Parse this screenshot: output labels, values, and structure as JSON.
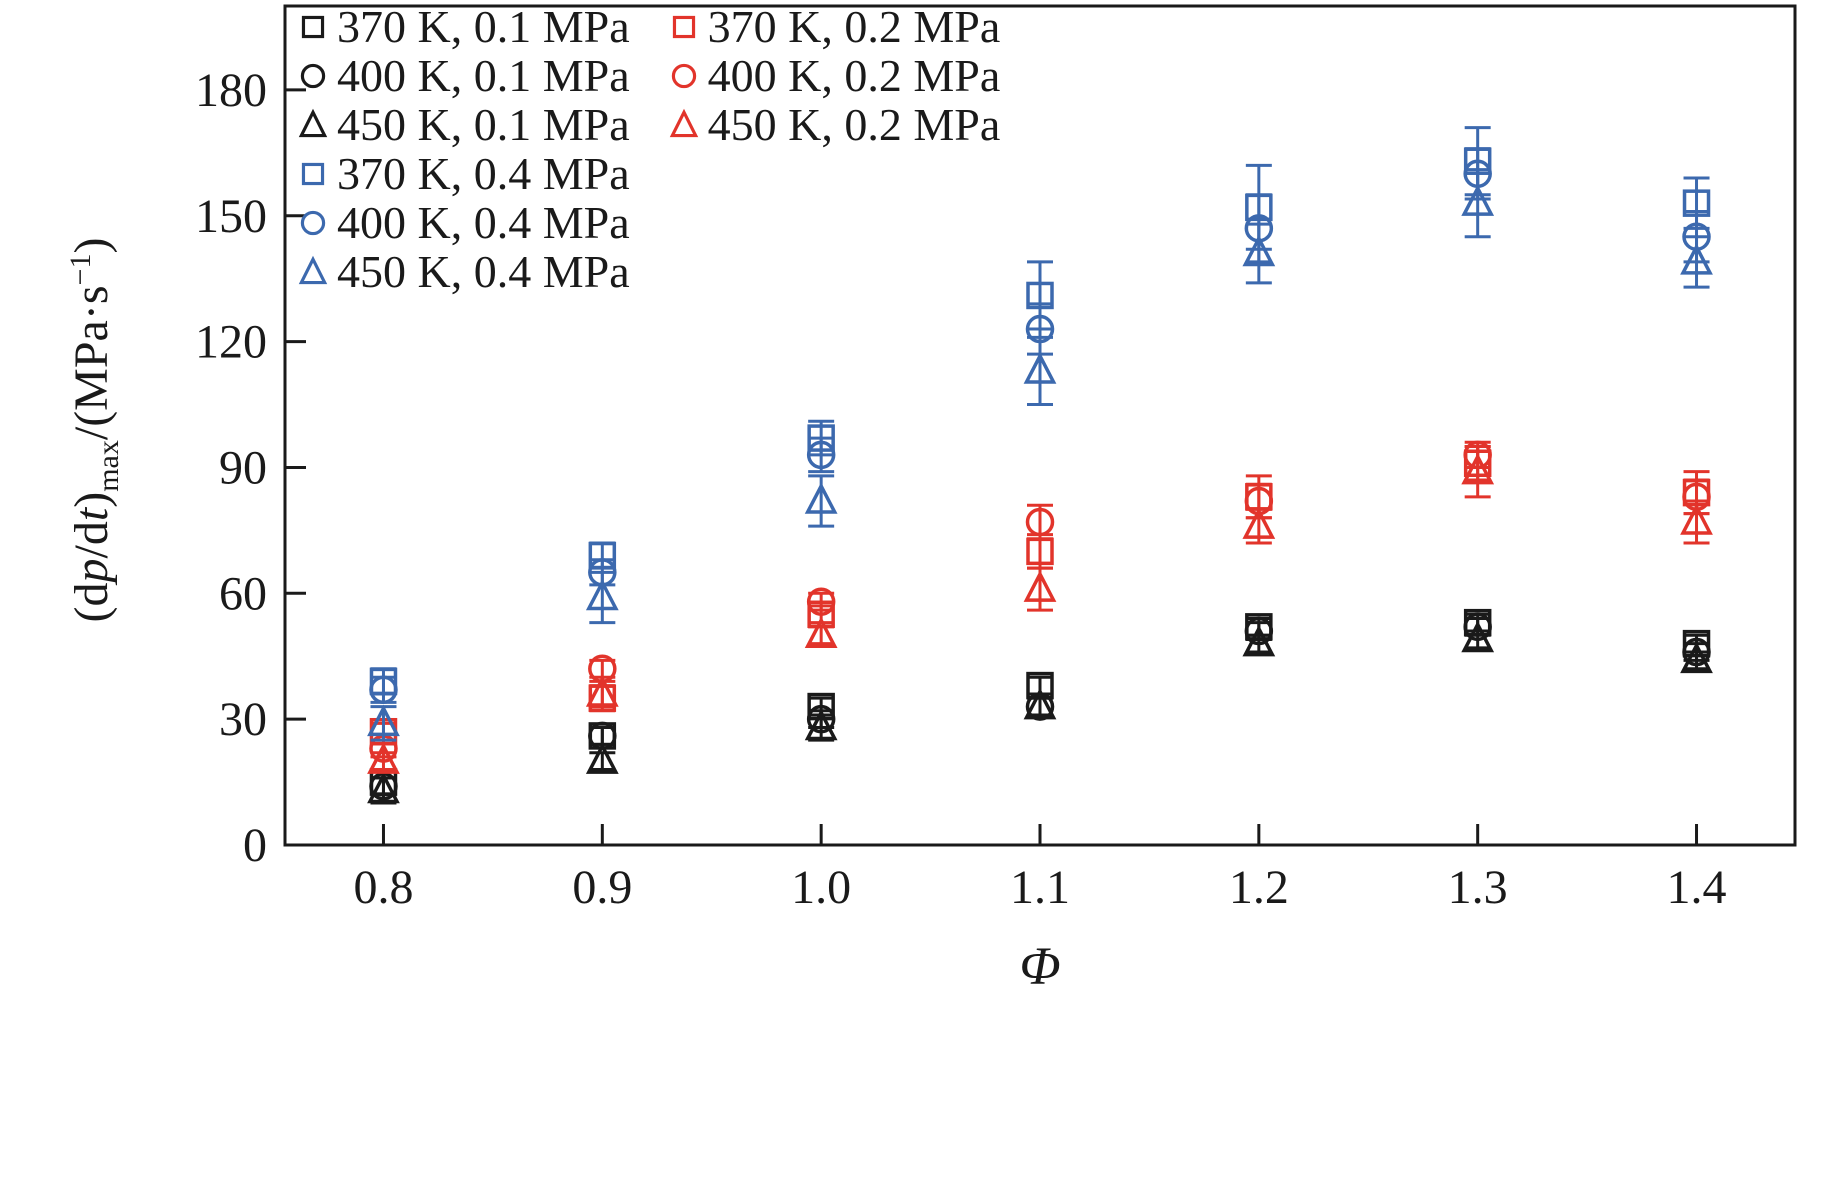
{
  "colors": {
    "axis": "#1a1a1a",
    "black_series": "#1a1a1a",
    "red_series": "#e2342b",
    "blue_series": "#3c69ae"
  },
  "ylabel_parts": {
    "p1": "(d",
    "p2": "p",
    "p3": "/d",
    "p4": "t",
    "p5": ")",
    "sub": "max",
    "p6": "/(MPa·s",
    "sup": "−1",
    "p7": ")"
  },
  "chart_data": {
    "type": "scatter",
    "title": "",
    "xlabel": "Φ",
    "ylabel": "(dp/dt)max/(MPa·s−1)",
    "x": [
      0.8,
      0.9,
      1.0,
      1.1,
      1.2,
      1.3,
      1.4
    ],
    "xlim": [
      0.755,
      1.445
    ],
    "ylim": [
      0,
      200
    ],
    "xticks": [
      0.8,
      0.9,
      1.0,
      1.1,
      1.2,
      1.3,
      1.4
    ],
    "yticks": [
      0,
      30,
      60,
      90,
      120,
      150,
      180
    ],
    "grid": false,
    "legend_position": "top-left",
    "legend_columns": 2,
    "series": [
      {
        "name": "370 K, 0.1 MPa",
        "marker": "square",
        "color": "#1a1a1a",
        "values": [
          15,
          26,
          33,
          38,
          52,
          53,
          48
        ],
        "errors": [
          3,
          2,
          2,
          2,
          2,
          2,
          2
        ]
      },
      {
        "name": "400 K, 0.1 MPa",
        "marker": "circle",
        "color": "#1a1a1a",
        "values": [
          14,
          26,
          30,
          33,
          51,
          52,
          46
        ],
        "errors": [
          2,
          2,
          2,
          2,
          2,
          2,
          2
        ]
      },
      {
        "name": "450 K, 0.1 MPa",
        "marker": "triangle",
        "color": "#1a1a1a",
        "values": [
          13,
          20,
          28,
          33,
          48,
          49,
          44
        ],
        "errors": [
          3,
          2,
          3,
          2,
          2,
          2,
          2
        ]
      },
      {
        "name": "370 K, 0.2 MPa",
        "marker": "square",
        "color": "#e2342b",
        "values": [
          27,
          35,
          55,
          70,
          83,
          91,
          84
        ],
        "errors": [
          2,
          3,
          2,
          4,
          5,
          4,
          5
        ]
      },
      {
        "name": "400 K, 0.2 MPa",
        "marker": "circle",
        "color": "#e2342b",
        "values": [
          23,
          42,
          58,
          77,
          82,
          93,
          83
        ],
        "errors": [
          2,
          2,
          2,
          4,
          4,
          3,
          4
        ]
      },
      {
        "name": "450 K, 0.2 MPa",
        "marker": "triangle",
        "color": "#e2342b",
        "values": [
          20,
          36,
          50,
          61,
          76,
          89,
          77
        ],
        "errors": [
          2,
          3,
          2,
          5,
          4,
          6,
          5
        ]
      },
      {
        "name": "370 K, 0.4 MPa",
        "marker": "square",
        "color": "#3c69ae",
        "values": [
          39,
          69,
          97,
          131,
          152,
          163,
          153
        ],
        "errors": [
          3,
          3,
          4,
          8,
          10,
          8,
          6
        ]
      },
      {
        "name": "400 K, 0.4 MPa",
        "marker": "circle",
        "color": "#3c69ae",
        "values": [
          37,
          65,
          93,
          123,
          147,
          160,
          145
        ],
        "errors": [
          3,
          3,
          4,
          6,
          8,
          6,
          6
        ]
      },
      {
        "name": "450 K, 0.4 MPa",
        "marker": "triangle",
        "color": "#3c69ae",
        "values": [
          29,
          59,
          82,
          113,
          141,
          153,
          139
        ],
        "errors": [
          4,
          6,
          6,
          8,
          7,
          8,
          6
        ]
      }
    ]
  }
}
